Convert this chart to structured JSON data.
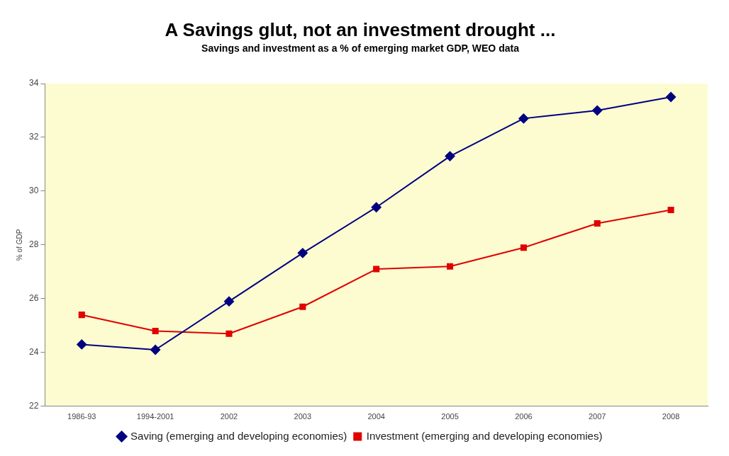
{
  "chart_data": {
    "type": "line",
    "title": "A Savings glut, not an investment drought ...",
    "subtitle": "Savings and investment as a % of emerging market GDP, WEO data",
    "ylabel": "% of GDP",
    "categories": [
      "1986-93",
      "1994-2001",
      "2002",
      "2003",
      "2004",
      "2005",
      "2006",
      "2007",
      "2008"
    ],
    "series": [
      {
        "name": "Saving (emerging and developing economies)",
        "color": "#000080",
        "marker": "diamond",
        "values": [
          24.3,
          24.1,
          25.9,
          27.7,
          29.4,
          31.3,
          32.7,
          33.0,
          33.5
        ]
      },
      {
        "name": "Investment (emerging and developing economies)",
        "color": "#e00000",
        "marker": "square",
        "values": [
          25.4,
          24.8,
          24.7,
          25.7,
          27.1,
          27.2,
          27.9,
          28.8,
          29.3
        ]
      }
    ],
    "ylim": [
      22,
      34
    ],
    "yticks": [
      22,
      24,
      26,
      28,
      30,
      32,
      34
    ],
    "grid": false,
    "legend": "bottom"
  }
}
